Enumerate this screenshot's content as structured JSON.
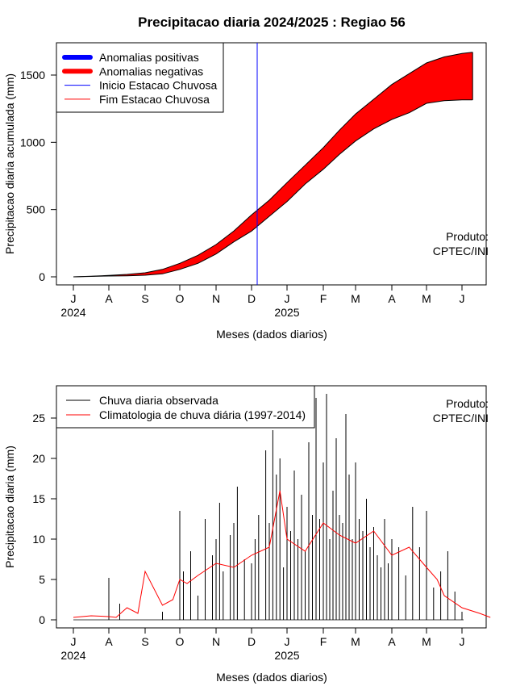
{
  "chart_data": [
    {
      "type": "area",
      "title": "Precipitacao diaria 2024/2025 : Regiao 56",
      "xlabel": "Meses (dados diarios)",
      "ylabel": "Precipitacao diaria acumulada (mm)",
      "x_ticks": [
        "J",
        "A",
        "S",
        "O",
        "N",
        "D",
        "J",
        "F",
        "M",
        "A",
        "M",
        "J"
      ],
      "year_labels": [
        "2024",
        "2025"
      ],
      "yticks": [
        "0",
        "500",
        "1000",
        "1500"
      ],
      "ylim": [
        -50,
        1750
      ],
      "grid": false,
      "legend_position": "top-left",
      "legend": [
        {
          "label": "Anomalias positivas",
          "color": "#0000ff",
          "style": "thick-line"
        },
        {
          "label": "Anomalias negativas",
          "color": "#ff0000",
          "style": "thick-line"
        },
        {
          "label": "Inicio Estacao Chuvosa",
          "color": "#0000ff",
          "style": "thin-line"
        },
        {
          "label": "Fim Estacao Chuvosa",
          "color": "#ff0000",
          "style": "thin-line"
        }
      ],
      "rainy_season_start_month": 5.0,
      "credit_lines": [
        "Produto:",
        "CPTEC/INI"
      ],
      "series": [
        {
          "name": "climatology_upper",
          "x": [
            0,
            0.5,
            1,
            1.5,
            2,
            2.5,
            3,
            3.5,
            4,
            4.5,
            5,
            5.5,
            6,
            6.5,
            7,
            7.5,
            8,
            8.5,
            9,
            9.5,
            10,
            10.5,
            11,
            11.3
          ],
          "y": [
            0,
            5,
            10,
            18,
            30,
            55,
            100,
            160,
            240,
            340,
            460,
            570,
            700,
            830,
            960,
            1090,
            1210,
            1320,
            1430,
            1510,
            1590,
            1635,
            1660,
            1670
          ]
        },
        {
          "name": "observed_lower",
          "x": [
            0,
            0.5,
            1,
            1.5,
            2,
            2.5,
            3,
            3.5,
            4,
            4.5,
            5,
            5.5,
            6,
            6.5,
            7,
            7.5,
            8,
            8.5,
            9,
            9.5,
            10,
            10.5,
            11,
            11.3
          ],
          "y": [
            0,
            3,
            6,
            8,
            12,
            22,
            55,
            100,
            170,
            260,
            340,
            450,
            560,
            690,
            800,
            910,
            1010,
            1100,
            1170,
            1220,
            1290,
            1310,
            1315,
            1315
          ]
        }
      ],
      "colors": {
        "positive_anomaly": "#0000ff",
        "negative_anomaly": "#ff0000",
        "outline": "#000000"
      }
    },
    {
      "type": "bar",
      "xlabel": "Meses (dados diarios)",
      "ylabel": "Precipitacao diaria (mm)",
      "x_ticks": [
        "J",
        "A",
        "S",
        "O",
        "N",
        "D",
        "J",
        "F",
        "M",
        "A",
        "M",
        "J"
      ],
      "year_labels": [
        "2024",
        "2025"
      ],
      "yticks": [
        "0",
        "5",
        "10",
        "15",
        "20",
        "25"
      ],
      "ylim": [
        -1,
        29
      ],
      "grid": false,
      "legend_position": "top-left",
      "legend": [
        {
          "label": "Chuva diaria observada",
          "color": "#000000"
        },
        {
          "label": "Climatologia de chuva diária (1997-2014)",
          "color": "#ff0000"
        }
      ],
      "credit_lines": [
        "Produto:",
        "CPTEC/INI"
      ],
      "series": [
        {
          "name": "Climatologia de chuva diária (1997-2014)",
          "x": [
            0,
            0.5,
            1,
            1.2,
            1.5,
            1.8,
            2.0,
            2.5,
            2.8,
            3.0,
            3.2,
            3.5,
            4.0,
            4.5,
            5.0,
            5.5,
            5.8,
            6.0,
            6.5,
            7.0,
            7.5,
            8.0,
            8.5,
            9.0,
            9.5,
            10.0,
            10.3,
            10.5,
            11.0,
            11.5,
            11.8
          ],
          "y": [
            0.3,
            0.5,
            0.4,
            0.3,
            1.5,
            0.8,
            6.0,
            1.8,
            2.5,
            5.0,
            4.5,
            5.5,
            7.0,
            6.5,
            8.0,
            9.0,
            16.0,
            10.0,
            8.5,
            12.0,
            10.5,
            9.5,
            11.0,
            8.0,
            9.0,
            6.5,
            5.0,
            3.0,
            1.5,
            0.8,
            0.3
          ]
        },
        {
          "name": "Chuva diaria observada",
          "x": [
            1.0,
            1.3,
            2.5,
            3.0,
            3.1,
            3.3,
            3.5,
            3.7,
            3.9,
            4.0,
            4.1,
            4.2,
            4.4,
            4.5,
            4.6,
            4.8,
            5.0,
            5.1,
            5.2,
            5.4,
            5.5,
            5.6,
            5.7,
            5.8,
            5.9,
            6.0,
            6.1,
            6.2,
            6.3,
            6.4,
            6.5,
            6.6,
            6.7,
            6.8,
            6.9,
            7.0,
            7.1,
            7.2,
            7.3,
            7.4,
            7.5,
            7.6,
            7.7,
            7.8,
            7.9,
            8.0,
            8.1,
            8.2,
            8.3,
            8.4,
            8.5,
            8.6,
            8.7,
            8.8,
            8.9,
            9.0,
            9.2,
            9.4,
            9.6,
            9.8,
            10.0,
            10.2,
            10.4,
            10.6,
            10.8,
            11.0
          ],
          "y": [
            5.2,
            2.0,
            1.0,
            13.5,
            6.0,
            8.5,
            3.0,
            12.5,
            8.0,
            10.0,
            14.5,
            6.0,
            10.5,
            12.0,
            16.5,
            7.5,
            7.0,
            10.0,
            13.0,
            21.0,
            12.0,
            23.5,
            18.0,
            20.0,
            6.5,
            14.0,
            11.0,
            18.5,
            10.0,
            15.5,
            8.5,
            22.0,
            13.0,
            27.5,
            12.5,
            19.5,
            28.0,
            10.0,
            16.0,
            22.5,
            13.0,
            12.0,
            25.5,
            18.0,
            10.0,
            19.5,
            12.5,
            11.0,
            15.0,
            9.0,
            11.5,
            8.0,
            6.5,
            12.5,
            7.0,
            10.0,
            9.0,
            5.5,
            14.0,
            9.0,
            13.5,
            4.0,
            6.0,
            8.5,
            3.5,
            1.0
          ]
        }
      ],
      "colors": {
        "observed": "#000000",
        "climatology": "#ff0000"
      }
    }
  ]
}
